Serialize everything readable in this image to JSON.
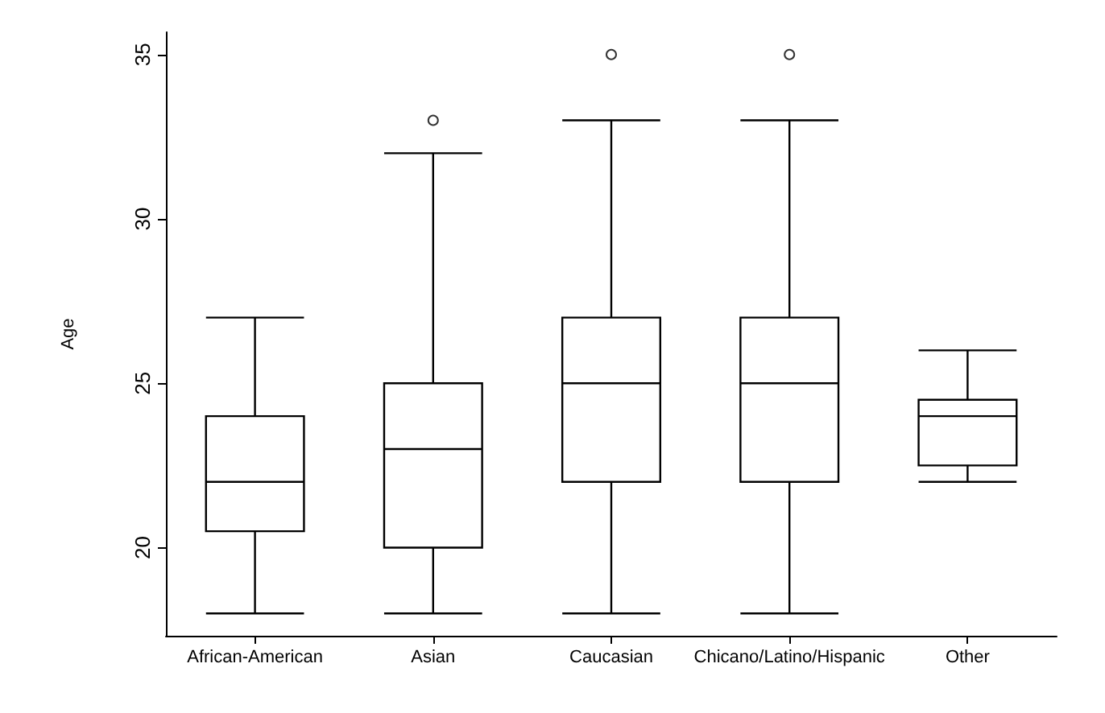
{
  "chart_data": {
    "type": "box",
    "ylabel": "Age",
    "categories": [
      "African-American",
      "Asian",
      "Caucasian",
      "Chicano/Latino/Hispanic",
      "Other"
    ],
    "boxes": [
      {
        "low": 18,
        "q1": 20.5,
        "median": 22,
        "q3": 24,
        "high": 27
      },
      {
        "low": 18,
        "q1": 20,
        "median": 23,
        "q3": 25,
        "high": 32,
        "outliers": [
          33
        ]
      },
      {
        "low": 18,
        "q1": 22,
        "median": 25,
        "q3": 27,
        "high": 33,
        "outliers": [
          35
        ]
      },
      {
        "low": 18,
        "q1": 22,
        "median": 25,
        "q3": 27,
        "high": 33,
        "outliers": [
          35
        ]
      },
      {
        "low": 22,
        "q1": 22.5,
        "median": 24,
        "q3": 24.5,
        "high": 26
      }
    ],
    "color": "#000000",
    "ylim": [
      17.32,
      35.68
    ],
    "yticks": [
      20,
      25,
      30,
      35
    ],
    "grid": false,
    "marker": "circle"
  }
}
